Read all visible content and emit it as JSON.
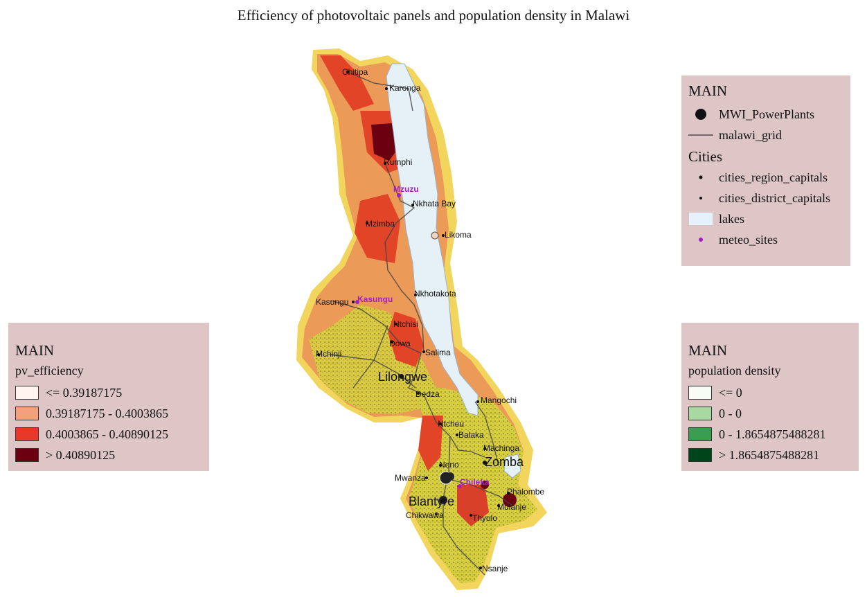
{
  "title": "Efficiency of photovoltaic panels and population density in Malawi",
  "legend_main": {
    "header": "MAIN",
    "items": [
      {
        "label": "MWI_PowerPlants",
        "icon": "black-dot"
      },
      {
        "label": "malawi_grid",
        "icon": "line"
      }
    ],
    "cities_header": "Cities",
    "city_items": [
      {
        "label": "cities_region_capitals",
        "icon": "small-dot"
      },
      {
        "label": "cities_district_capitals",
        "icon": "tiny-dot"
      },
      {
        "label": "lakes",
        "icon": "lake-swatch",
        "color": "#e6f2fb"
      },
      {
        "label": "meteo_sites",
        "icon": "purple-dot",
        "color": "#a020c8"
      }
    ]
  },
  "legend_pv": {
    "header": "MAIN",
    "subheader": "pv_efficiency",
    "classes": [
      {
        "label": "<= 0.39187175",
        "color": "#fff4ef"
      },
      {
        "label": "0.39187175 - 0.4003865",
        "color": "#f4a07c"
      },
      {
        "label": "0.4003865 - 0.40890125",
        "color": "#e8382a"
      },
      {
        "label": "> 0.40890125",
        "color": "#6b0010"
      }
    ]
  },
  "legend_pop": {
    "header": "MAIN",
    "subheader": "population density",
    "classes": [
      {
        "label": "<= 0",
        "color": "#f6fcf4"
      },
      {
        "label": "0 - 0",
        "color": "#a8d9a2"
      },
      {
        "label": "0 - 1.8654875488281",
        "color": "#3a9e50"
      },
      {
        "label": "> 1.8654875488281",
        "color": "#00441b"
      }
    ]
  },
  "map": {
    "colors": {
      "yellow": "#e9e048",
      "olive": "#9c9a3c",
      "orange": "#ec8a4a",
      "red": "#e24428",
      "darkred": "#6b0010",
      "lake": "#e6f2fb",
      "grid": "#444444"
    },
    "cities": [
      {
        "name": "Chitipa",
        "kind": "district"
      },
      {
        "name": "Karonga",
        "kind": "district"
      },
      {
        "name": "Rumphi",
        "kind": "district"
      },
      {
        "name": "Nkhata Bay",
        "kind": "district"
      },
      {
        "name": "Mzimba",
        "kind": "district"
      },
      {
        "name": "Likoma",
        "kind": "district"
      },
      {
        "name": "Nkhotakota",
        "kind": "district"
      },
      {
        "name": "Kasungu",
        "kind": "district"
      },
      {
        "name": "Ntchisi",
        "kind": "district"
      },
      {
        "name": "Dowa",
        "kind": "district"
      },
      {
        "name": "Mchinji",
        "kind": "district"
      },
      {
        "name": "Salima",
        "kind": "district"
      },
      {
        "name": "Lilongwe",
        "kind": "region"
      },
      {
        "name": "Dedza",
        "kind": "district"
      },
      {
        "name": "Mangochi",
        "kind": "district"
      },
      {
        "name": "Ntcheu",
        "kind": "district"
      },
      {
        "name": "Balaka",
        "kind": "district"
      },
      {
        "name": "Machinga",
        "kind": "district"
      },
      {
        "name": "Neno",
        "kind": "district"
      },
      {
        "name": "Zomba",
        "kind": "region"
      },
      {
        "name": "Mwanza",
        "kind": "district"
      },
      {
        "name": "Phalombe",
        "kind": "district"
      },
      {
        "name": "Blantyre",
        "kind": "region"
      },
      {
        "name": "Mulanje",
        "kind": "district"
      },
      {
        "name": "Chikwawa",
        "kind": "district"
      },
      {
        "name": "Thyolo",
        "kind": "district"
      },
      {
        "name": "Nsanje",
        "kind": "district"
      }
    ],
    "meteo_sites": [
      "Mzuzu",
      "Kasungu",
      "Chileka"
    ]
  }
}
